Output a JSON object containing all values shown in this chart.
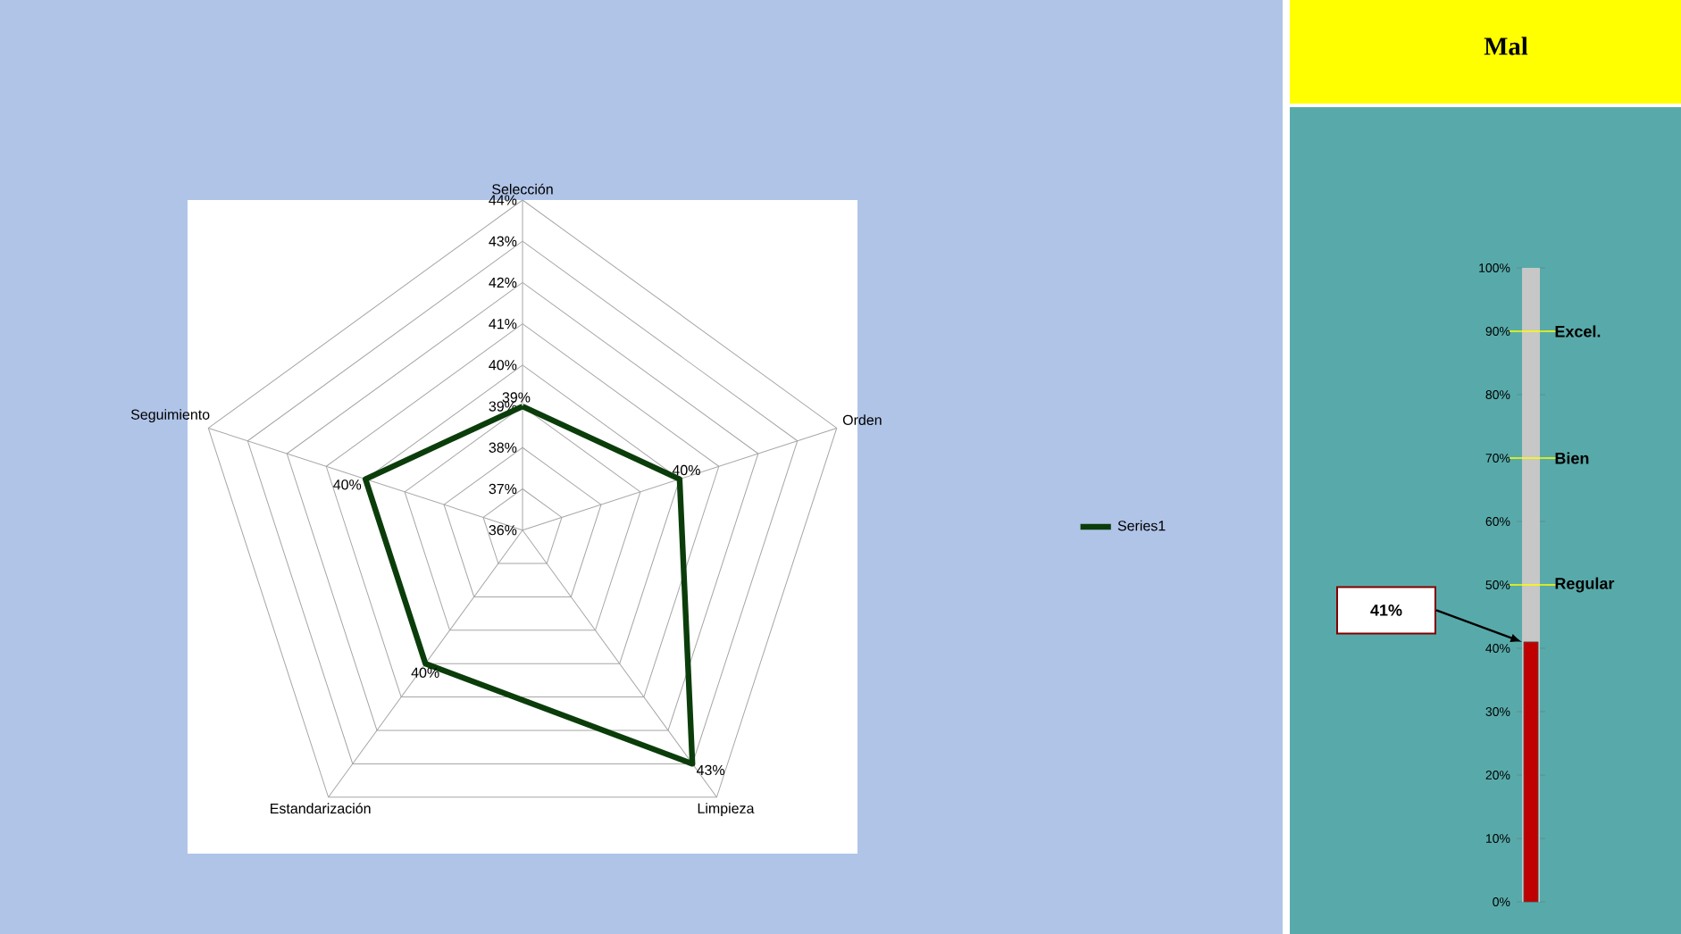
{
  "chart_data": [
    {
      "type": "radar",
      "categories": [
        "Selección",
        "Orden",
        "Limpieza",
        "Estandarización",
        "Seguimiento"
      ],
      "series": [
        {
          "name": "Series1",
          "color": "#0b3d0b",
          "values": [
            39,
            40,
            43,
            40,
            40
          ],
          "value_labels": [
            "39%",
            "40%",
            "43%",
            "40%",
            "40%"
          ]
        }
      ],
      "ylim": [
        36,
        44
      ],
      "yticks": [
        {
          "value": 36,
          "label": "36%"
        },
        {
          "value": 37,
          "label": "37%"
        },
        {
          "value": 38,
          "label": "38%"
        },
        {
          "value": 39,
          "label": "39%"
        },
        {
          "value": 40,
          "label": "40%"
        },
        {
          "value": 41,
          "label": "41%"
        },
        {
          "value": 42,
          "label": "42%"
        },
        {
          "value": 43,
          "label": "43%"
        },
        {
          "value": 44,
          "label": "44%"
        }
      ],
      "grid": true,
      "legend": "right"
    },
    {
      "type": "bar",
      "title": "Mal",
      "categories": [
        null
      ],
      "values": [
        41
      ],
      "colors": [
        "#c00000"
      ],
      "annotations": [
        "41%"
      ],
      "ylim": [
        0,
        100
      ],
      "yticks": [
        {
          "value": 0,
          "label": "0%"
        },
        {
          "value": 10,
          "label": "10%"
        },
        {
          "value": 20,
          "label": "20%"
        },
        {
          "value": 30,
          "label": "30%"
        },
        {
          "value": 40,
          "label": "40%"
        },
        {
          "value": 50,
          "label": "50%"
        },
        {
          "value": 60,
          "label": "60%"
        },
        {
          "value": 70,
          "label": "70%"
        },
        {
          "value": 80,
          "label": "80%"
        },
        {
          "value": 90,
          "label": "90%"
        },
        {
          "value": 100,
          "label": "100%"
        }
      ],
      "bands": [
        {
          "axis": "y",
          "from": 0,
          "to": 100,
          "color": "#c7c7c7"
        }
      ],
      "ref_lines": [
        {
          "axis": "y",
          "value": 90,
          "label": "Excel.",
          "color": "#ffff00"
        },
        {
          "axis": "y",
          "value": 70,
          "label": "Bien",
          "color": "#ffff00"
        },
        {
          "axis": "y",
          "value": 50,
          "label": "Regular",
          "color": "#ffff00"
        }
      ]
    }
  ]
}
